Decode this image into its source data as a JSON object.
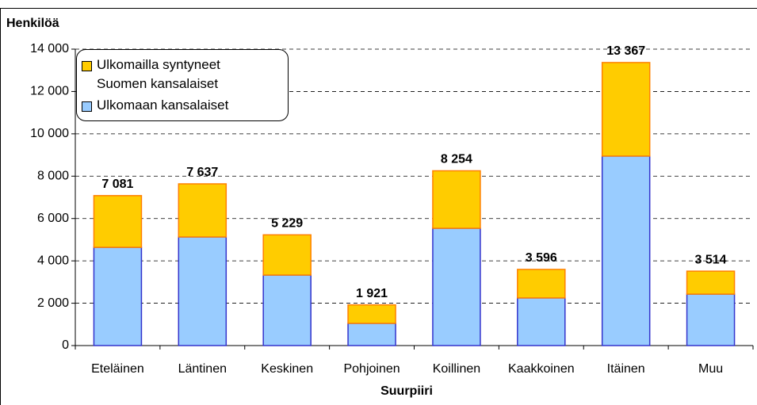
{
  "chart_data": {
    "type": "stacked_bar",
    "y_label": "Henkilöä",
    "x_label": "Suurpiiri",
    "categories": [
      "Eteläinen",
      "Läntinen",
      "Keskinen",
      "Pohjoinen",
      "Koillinen",
      "Kaakkoinen",
      "Itäinen",
      "Muu"
    ],
    "series": [
      {
        "name": "Ulkomaan kansalaiset",
        "color": "#99ccff",
        "stroke": "#3333cc",
        "values": [
          4640,
          5130,
          3330,
          1050,
          5540,
          2250,
          8950,
          2430
        ]
      },
      {
        "name": "Ulkomailla syntyneet Suomen kansalaiset",
        "color": "#ffcc00",
        "stroke": "#ff8000",
        "values": [
          2441,
          2507,
          1899,
          871,
          2714,
          1346,
          4417,
          1084
        ]
      }
    ],
    "totals": {
      "values": [
        7081,
        7637,
        5229,
        1921,
        8254,
        3596,
        13367,
        3514
      ],
      "value_labels": [
        "7 081",
        "7 637",
        "5 229",
        "1 921",
        "8 254",
        "3 596",
        "13 367",
        "3 514"
      ]
    },
    "ylim": [
      0,
      14000
    ],
    "yticks": [
      0,
      {
        "value": 2000,
        "label": "2 000"
      },
      {
        "value": 4000,
        "label": "4 000"
      },
      {
        "value": 6000,
        "label": "6 000"
      },
      {
        "value": 8000,
        "label": "8 000"
      },
      {
        "value": 10000,
        "label": "10 000"
      },
      {
        "value": 12000,
        "label": "12 000"
      },
      {
        "value": 14000,
        "label": "14 000"
      }
    ],
    "grid": true
  }
}
